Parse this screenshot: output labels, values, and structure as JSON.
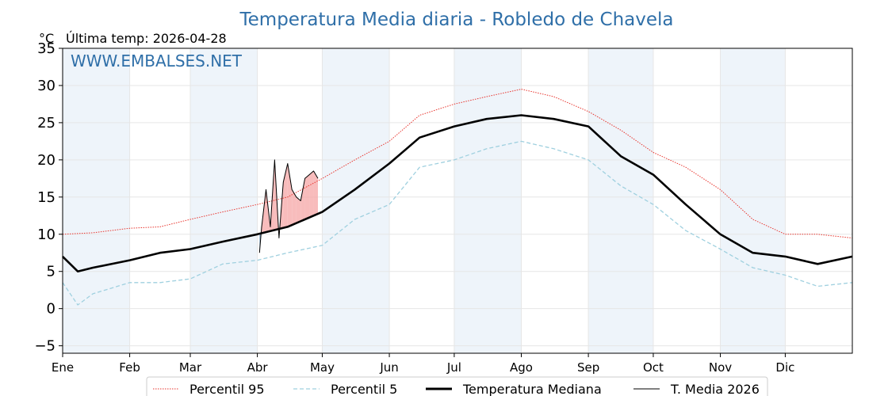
{
  "chart_data": {
    "type": "line",
    "title": "Temperatura Media diaria - Robledo de Chavela",
    "unit_label": "°C",
    "last_temp_label": "Última temp: 2026-04-28",
    "watermark": "WWW.EMBALSES.NET",
    "ylim": [
      -6,
      35
    ],
    "y_ticks": [
      -5,
      0,
      5,
      10,
      15,
      20,
      25,
      30,
      35
    ],
    "x_ticks": [
      {
        "label": "Ene",
        "day": 1
      },
      {
        "label": "Feb",
        "day": 32
      },
      {
        "label": "Mar",
        "day": 60
      },
      {
        "label": "Abr",
        "day": 91
      },
      {
        "label": "May",
        "day": 121
      },
      {
        "label": "Jun",
        "day": 152
      },
      {
        "label": "Jul",
        "day": 182
      },
      {
        "label": "Ago",
        "day": 213
      },
      {
        "label": "Sep",
        "day": 244
      },
      {
        "label": "Oct",
        "day": 274
      },
      {
        "label": "Nov",
        "day": 305
      },
      {
        "label": "Dic",
        "day": 335
      }
    ],
    "xlim": [
      1,
      366
    ],
    "grid": true,
    "legend_position": "bottom",
    "colors": {
      "p95": "#e8352e",
      "p5": "#9fd0df",
      "median": "#000000",
      "current": "#000000",
      "fill_above": "#f5a5a5",
      "fill_below": "#5f8fb5",
      "band": "#eef4fa",
      "title": "#2f6fa8"
    },
    "series": [
      {
        "name": "Percentil 95",
        "style": "dotted-red",
        "x": [
          1,
          15,
          32,
          46,
          60,
          75,
          91,
          105,
          121,
          136,
          152,
          166,
          182,
          197,
          213,
          228,
          244,
          259,
          274,
          289,
          305,
          320,
          335,
          350,
          366
        ],
        "y": [
          10,
          10.2,
          10.8,
          11,
          12,
          13,
          14,
          15,
          17.5,
          20,
          22.5,
          26,
          27.5,
          28.5,
          29.5,
          28.5,
          26.5,
          24,
          21,
          19,
          16,
          12,
          10,
          10,
          9.5
        ]
      },
      {
        "name": "Percentil 5",
        "style": "dashed-lightblue",
        "x": [
          1,
          8,
          15,
          32,
          46,
          60,
          75,
          91,
          105,
          121,
          136,
          152,
          166,
          182,
          197,
          213,
          228,
          244,
          259,
          274,
          289,
          305,
          320,
          335,
          350,
          366
        ],
        "y": [
          3.5,
          0.5,
          2,
          3.5,
          3.5,
          4,
          6,
          6.5,
          7.5,
          8.5,
          12,
          14,
          19,
          20,
          21.5,
          22.5,
          21.5,
          20,
          16.5,
          14,
          10.5,
          8,
          5.5,
          4.5,
          3,
          3.5
        ]
      },
      {
        "name": "Temperatura Mediana",
        "style": "solid-thick-black",
        "x": [
          1,
          8,
          15,
          32,
          46,
          60,
          75,
          91,
          105,
          121,
          136,
          152,
          166,
          182,
          197,
          213,
          228,
          244,
          259,
          274,
          289,
          305,
          320,
          335,
          350,
          366
        ],
        "y": [
          7,
          5,
          5.5,
          6.5,
          7.5,
          8,
          9,
          10,
          11,
          13,
          16,
          19.5,
          23,
          24.5,
          25.5,
          26,
          25.5,
          24.5,
          20.5,
          18,
          14,
          10,
          7.5,
          7,
          6,
          7
        ]
      },
      {
        "name": "T. Media 2026",
        "style": "solid-thin-black",
        "x": [
          92,
          93,
          95,
          97,
          99,
          101,
          103,
          105,
          107,
          109,
          111,
          113,
          115,
          117,
          119
        ],
        "y": [
          7.5,
          11,
          16,
          11,
          20,
          9.5,
          17,
          19.5,
          16,
          15,
          14.5,
          17.5,
          18,
          18.5,
          17.5
        ]
      }
    ]
  }
}
